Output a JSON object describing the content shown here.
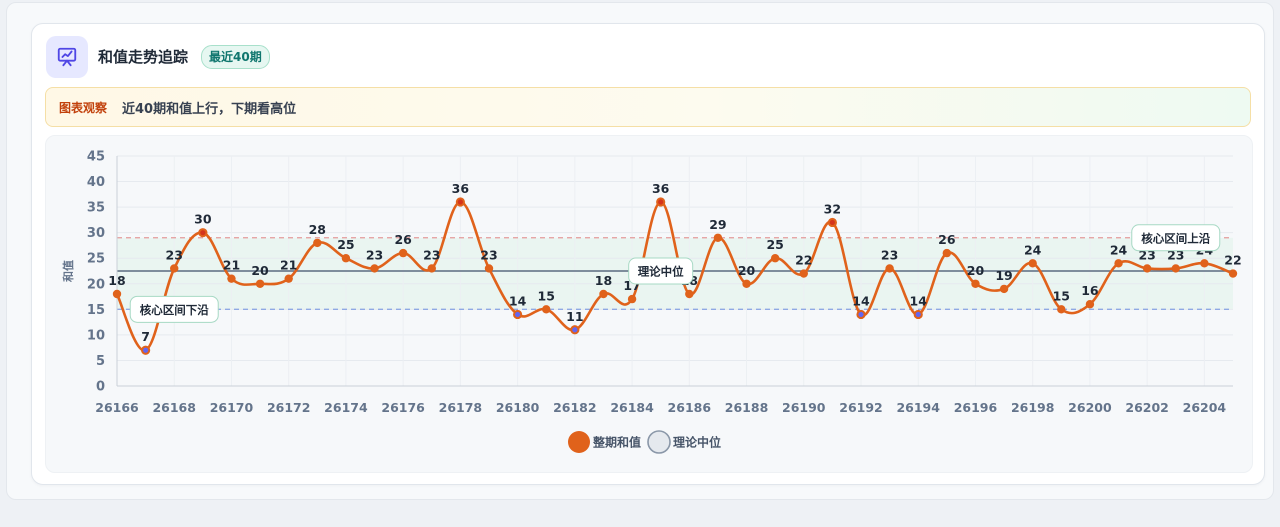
{
  "header": {
    "title": "和值走势追踪",
    "badge": "最近40期",
    "icon": "chart-presentation-icon"
  },
  "note": {
    "tag": "图表观察",
    "text": "近40期和值上行，下期看高位"
  },
  "colors": {
    "line": "#e0621b",
    "point_low": "#6366f1",
    "median": "#5b6b80",
    "upper_band": "#e39a9a",
    "lower_band": "#8fa9e4",
    "band_fill": "#e7f5ee",
    "accent_icon": "#4f46e5"
  },
  "chart_data": {
    "type": "line",
    "title": "",
    "xlabel": "",
    "ylabel": "和值",
    "ylim": [
      0,
      45
    ],
    "yticks": [
      0,
      5,
      10,
      15,
      20,
      25,
      30,
      35,
      40,
      45
    ],
    "xlim": [
      26166,
      26205
    ],
    "xticks": [
      "26166",
      "26168",
      "26170",
      "26172",
      "26174",
      "26176",
      "26178",
      "26180",
      "26182",
      "26184",
      "26186",
      "26188",
      "26190",
      "26192",
      "26194",
      "26196",
      "26198",
      "26200",
      "26202",
      "26204"
    ],
    "grid": true,
    "x": [
      26166,
      26167,
      26168,
      26169,
      26170,
      26171,
      26172,
      26173,
      26174,
      26175,
      26176,
      26177,
      26178,
      26179,
      26180,
      26181,
      26182,
      26183,
      26184,
      26185,
      26186,
      26187,
      26188,
      26189,
      26190,
      26191,
      26192,
      26193,
      26194,
      26195,
      26196,
      26197,
      26198,
      26199,
      26200,
      26201,
      26202,
      26203,
      26204,
      26205
    ],
    "series": [
      {
        "name": "整期和值",
        "values": [
          18,
          7,
          23,
          30,
          21,
          20,
          21,
          28,
          25,
          23,
          26,
          23,
          36,
          23,
          14,
          15,
          11,
          18,
          17,
          36,
          18,
          29,
          20,
          25,
          22,
          32,
          14,
          23,
          14,
          26,
          20,
          19,
          24,
          15,
          16,
          24,
          23,
          23,
          24,
          22
        ]
      }
    ],
    "median_line": {
      "name": "理论中位",
      "value": 22.5
    },
    "band": {
      "lower": 15,
      "upper": 29
    },
    "annotations": [
      {
        "text": "核心区间下沿",
        "x": 26168,
        "y": 15
      },
      {
        "text": "理论中位",
        "x": 26185,
        "y": 22.5
      },
      {
        "text": "核心区间上沿",
        "x": 26203,
        "y": 29
      }
    ],
    "legend": {
      "position": "bottom",
      "items": [
        "整期和值",
        "理论中位"
      ]
    }
  }
}
